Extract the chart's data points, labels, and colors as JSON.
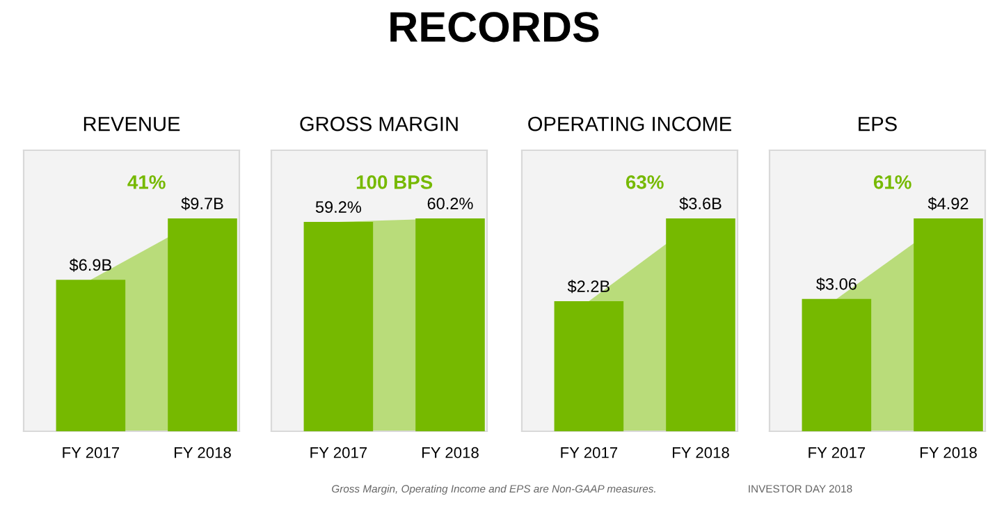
{
  "chart_data": [
    {
      "type": "bar",
      "title": "REVENUE",
      "categories": [
        "FY 2017",
        "FY 2018"
      ],
      "series": [
        {
          "type": "area",
          "color": "#b9dc7a",
          "values": [
            6.9,
            9.7
          ]
        },
        {
          "color": "#76b900",
          "values": [
            6.9,
            9.7
          ],
          "value_labels": [
            "$6.9B",
            "$9.7B"
          ]
        }
      ],
      "annotations": [
        "41%",
        "RECORDS"
      ]
    },
    {
      "type": "bar",
      "title": "GROSS MARGIN",
      "categories": [
        "FY 2017",
        "FY 2018"
      ],
      "series": [
        {
          "type": "area",
          "color": "#b9dc7a",
          "values": [
            59.2,
            60.2
          ]
        },
        {
          "color": "#76b900",
          "values": [
            59.2,
            60.2
          ],
          "value_labels": [
            "59.2%",
            "60.2%"
          ]
        }
      ],
      "annotations": [
        "100 BPS"
      ]
    },
    {
      "type": "bar",
      "title": "OPERATING INCOME",
      "categories": [
        "FY 2017",
        "FY 2018"
      ],
      "series": [
        {
          "type": "area",
          "color": "#b9dc7a",
          "values": [
            2.2,
            3.6
          ]
        },
        {
          "color": "#76b900",
          "values": [
            2.2,
            3.6
          ],
          "value_labels": [
            "$2.2B",
            "$3.6B"
          ]
        }
      ],
      "annotations": [
        "63%"
      ]
    },
    {
      "type": "bar",
      "title": "EPS",
      "categories": [
        "FY 2017",
        "FY 2018"
      ],
      "series": [
        {
          "type": "area",
          "color": "#b9dc7a",
          "values": [
            3.06,
            4.92
          ]
        },
        {
          "color": "#76b900",
          "values": [
            3.06,
            4.92
          ],
          "value_labels": [
            "$3.06",
            "$4.92"
          ]
        }
      ],
      "annotations": [
        "61%",
        "Gross Margin, Operating Income and EPS are Non-GAAP measures.",
        "INVESTOR DAY 2018"
      ]
    }
  ]
}
